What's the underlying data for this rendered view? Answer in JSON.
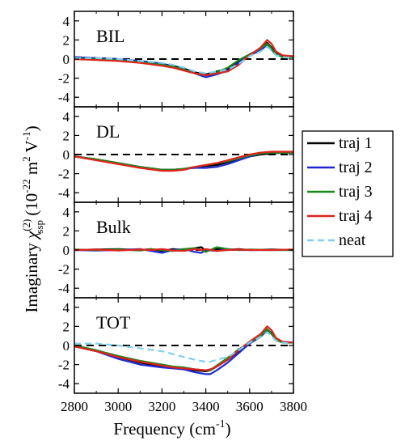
{
  "chart_data": {
    "type": "line",
    "xlabel": "Frequency (cm",
    "xlabel_sup": "-1",
    "xlabel_close": ")",
    "ylabel": {
      "main": "Imaginary ",
      "chi": "χ",
      "sup": "(2)",
      "sub": "ssp",
      "units_open": " (10",
      "exp1": "-22",
      "unit_m": " m",
      "exp2": "2",
      "unit_V": " V",
      "exp3": "-1",
      "units_close": ")"
    },
    "xlim": [
      2800,
      3800
    ],
    "ylim": [
      -5,
      5
    ],
    "x_ticks": [
      "2800",
      "3000",
      "3200",
      "3400",
      "3600",
      "3800"
    ],
    "y_ticks": [
      "-4",
      "-2",
      "0",
      "2",
      "4"
    ],
    "legend": {
      "position": "right",
      "entries": [
        {
          "name": "traj 1",
          "color": "#000000",
          "style": "solid"
        },
        {
          "name": "traj 2",
          "color": "#1f2bd0",
          "style": "solid"
        },
        {
          "name": "traj 3",
          "color": "#1a8a1a",
          "style": "solid"
        },
        {
          "name": "traj 4",
          "color": "#e0221c",
          "style": "solid"
        },
        {
          "name": "neat",
          "color": "#7fd0f0",
          "style": "dashed"
        }
      ]
    },
    "panels": [
      {
        "label": "BIL",
        "x": [
          2800,
          2900,
          3000,
          3100,
          3200,
          3250,
          3300,
          3350,
          3400,
          3450,
          3500,
          3550,
          3600,
          3650,
          3680,
          3700,
          3720,
          3750,
          3800
        ],
        "series": [
          {
            "name": "traj 1",
            "values": [
              0.2,
              0.1,
              0.0,
              -0.2,
              -0.5,
              -0.7,
              -1.0,
              -1.4,
              -1.6,
              -1.3,
              -1.0,
              -0.3,
              0.5,
              1.0,
              1.7,
              1.2,
              0.6,
              0.3,
              0.2
            ]
          },
          {
            "name": "traj 2",
            "values": [
              0.2,
              0.1,
              0.0,
              -0.2,
              -0.5,
              -0.8,
              -1.1,
              -1.5,
              -1.9,
              -1.6,
              -1.2,
              -0.4,
              0.4,
              0.9,
              1.5,
              1.0,
              0.5,
              0.3,
              0.2
            ]
          },
          {
            "name": "traj 3",
            "values": [
              0.1,
              0.0,
              -0.1,
              -0.3,
              -0.6,
              -0.8,
              -1.1,
              -1.5,
              -1.7,
              -1.4,
              -0.9,
              -0.1,
              0.5,
              1.1,
              1.6,
              1.1,
              0.5,
              0.2,
              0.2
            ]
          },
          {
            "name": "traj 4",
            "values": [
              0.0,
              -0.1,
              -0.2,
              -0.4,
              -0.7,
              -0.9,
              -1.2,
              -1.5,
              -1.7,
              -1.5,
              -1.3,
              -0.6,
              0.4,
              1.2,
              2.0,
              1.6,
              0.8,
              0.4,
              0.3
            ]
          },
          {
            "name": "neat",
            "values": [
              0.1,
              0.1,
              0.0,
              -0.2,
              -0.4,
              -0.6,
              -0.9,
              -1.3,
              -1.5,
              -1.3,
              -1.1,
              -0.5,
              0.3,
              0.8,
              1.3,
              0.9,
              0.4,
              0.2,
              0.1
            ]
          }
        ]
      },
      {
        "label": "DL",
        "x": [
          2800,
          2900,
          3000,
          3100,
          3200,
          3250,
          3300,
          3350,
          3400,
          3450,
          3500,
          3550,
          3600,
          3650,
          3700,
          3750,
          3800
        ],
        "series": [
          {
            "name": "traj 1",
            "values": [
              -0.2,
              -0.5,
              -0.9,
              -1.3,
              -1.6,
              -1.6,
              -1.5,
              -1.3,
              -1.2,
              -1.1,
              -0.8,
              -0.5,
              -0.2,
              0.0,
              0.1,
              0.2,
              0.2
            ]
          },
          {
            "name": "traj 2",
            "values": [
              -0.2,
              -0.5,
              -0.9,
              -1.3,
              -1.6,
              -1.6,
              -1.5,
              -1.4,
              -1.4,
              -1.3,
              -1.0,
              -0.6,
              -0.2,
              0.1,
              0.2,
              0.2,
              0.2
            ]
          },
          {
            "name": "traj 3",
            "values": [
              -0.2,
              -0.5,
              -0.9,
              -1.3,
              -1.6,
              -1.6,
              -1.5,
              -1.3,
              -1.1,
              -0.9,
              -0.7,
              -0.4,
              -0.1,
              0.1,
              0.2,
              0.2,
              0.2
            ]
          },
          {
            "name": "traj 4",
            "values": [
              -0.2,
              -0.6,
              -1.0,
              -1.4,
              -1.7,
              -1.7,
              -1.6,
              -1.3,
              -1.1,
              -0.9,
              -0.6,
              -0.3,
              0.0,
              0.2,
              0.3,
              0.3,
              0.3
            ]
          }
        ]
      },
      {
        "label": "Bulk",
        "x": [
          2800,
          2900,
          3000,
          3100,
          3150,
          3200,
          3250,
          3300,
          3350,
          3380,
          3400,
          3450,
          3500,
          3550,
          3600,
          3700,
          3800
        ],
        "series": [
          {
            "name": "traj 1",
            "values": [
              0.0,
              0.05,
              0.1,
              0.0,
              0.1,
              -0.1,
              0.1,
              0.0,
              0.2,
              0.3,
              -0.1,
              0.1,
              0.0,
              0.1,
              0.0,
              0.05,
              0.0
            ]
          },
          {
            "name": "traj 2",
            "values": [
              0.0,
              -0.05,
              0.0,
              0.1,
              -0.1,
              -0.3,
              0.0,
              0.1,
              -0.2,
              -0.3,
              0.0,
              -0.1,
              0.1,
              0.0,
              0.0,
              0.0,
              0.0
            ]
          },
          {
            "name": "traj 3",
            "values": [
              0.05,
              0.0,
              0.05,
              -0.05,
              0.1,
              0.0,
              -0.1,
              0.1,
              0.2,
              0.0,
              -0.2,
              0.3,
              0.1,
              0.0,
              0.05,
              0.0,
              0.0
            ]
          },
          {
            "name": "traj 4",
            "values": [
              0.0,
              0.05,
              -0.05,
              0.05,
              0.0,
              0.1,
              -0.05,
              -0.1,
              0.1,
              0.0,
              0.1,
              -0.1,
              0.0,
              0.05,
              0.0,
              0.0,
              0.05
            ]
          }
        ]
      },
      {
        "label": "TOT",
        "x": [
          2800,
          2900,
          3000,
          3100,
          3200,
          3250,
          3300,
          3350,
          3400,
          3420,
          3450,
          3500,
          3550,
          3600,
          3650,
          3680,
          3700,
          3720,
          3750,
          3800
        ],
        "series": [
          {
            "name": "traj 1",
            "values": [
              0.0,
              -0.5,
              -1.2,
              -1.8,
              -2.2,
              -2.3,
              -2.5,
              -2.6,
              -2.7,
              -2.6,
              -2.2,
              -1.5,
              -0.6,
              0.3,
              0.9,
              1.7,
              1.3,
              0.7,
              0.4,
              0.3
            ]
          },
          {
            "name": "traj 2",
            "values": [
              -0.1,
              -0.6,
              -1.4,
              -2.0,
              -2.3,
              -2.4,
              -2.5,
              -2.8,
              -3.0,
              -3.0,
              -2.6,
              -1.8,
              -0.8,
              0.2,
              0.9,
              1.6,
              1.2,
              0.6,
              0.4,
              0.3
            ]
          },
          {
            "name": "traj 3",
            "values": [
              0.0,
              -0.5,
              -1.1,
              -1.6,
              -2.0,
              -2.2,
              -2.3,
              -2.5,
              -2.6,
              -2.6,
              -2.1,
              -1.3,
              -0.4,
              0.3,
              1.0,
              1.7,
              1.2,
              0.6,
              0.3,
              0.3
            ]
          },
          {
            "name": "traj 4",
            "values": [
              -0.1,
              -0.6,
              -1.2,
              -1.7,
              -2.1,
              -2.3,
              -2.4,
              -2.5,
              -2.6,
              -2.5,
              -2.2,
              -1.5,
              -0.5,
              0.4,
              1.2,
              2.0,
              1.6,
              0.8,
              0.4,
              0.3
            ]
          },
          {
            "name": "neat",
            "values": [
              0.2,
              0.2,
              0.0,
              -0.3,
              -0.6,
              -0.9,
              -1.2,
              -1.5,
              -1.7,
              -1.7,
              -1.5,
              -1.2,
              -0.5,
              0.3,
              0.9,
              1.4,
              1.0,
              0.5,
              0.3,
              0.2
            ]
          }
        ]
      }
    ]
  }
}
